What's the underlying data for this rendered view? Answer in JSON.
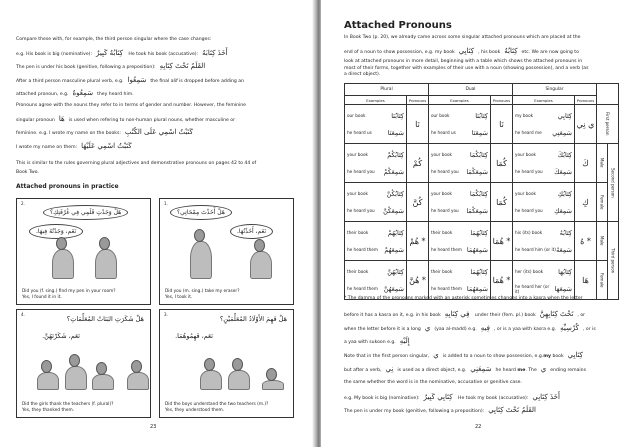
{
  "left_page": {
    "lines": [
      [
        {
          "t": "Compare these with, for example, the third person singular where the case changes:"
        }
      ],
      [
        {
          "t": "e.g. His book is big (nominative):"
        },
        {
          "t": "كِتَابُهُ كَبِيرٌ",
          "ar": 1
        },
        {
          "t": "           He took his book (accusative):"
        },
        {
          "t": "أَخَذَ كِتَابَهُ",
          "ar": 1
        }
      ],
      [
        {
          "t": "The pen is under his book (genitive, following a preposition):"
        },
        {
          "t": "القَلَمُ تَحْتَ كِتَابِهِ",
          "ar": 1
        }
      ],
      [
        {
          "t": "After a third person masculine plural verb, e.g."
        },
        {
          "t": "سَمِعُوا",
          "ar": 1
        },
        {
          "t": "the final alif is dropped before adding an"
        }
      ],
      [
        {
          "t": "attached pronoun, e.g."
        },
        {
          "t": "سَمِعُوهُ",
          "ar": 1
        },
        {
          "t": "they heard him."
        }
      ],
      [
        {
          "t": "Pronouns agree with the nouns they refer to in terms of gender and number.  However, the feminine"
        }
      ],
      [
        {
          "t": "singular pronoun"
        },
        {
          "t": "هَا",
          "ar": 1
        },
        {
          "t": "is used when refering to non-human plural nouns, whether masculine or"
        }
      ],
      [
        {
          "t": "feminine.    e.g. I wrote my name on the books:"
        },
        {
          "t": "كَتَبْتُ اسْمِي عَلَى الكُتُبِ",
          "ar": 1
        }
      ],
      [
        {
          "t": "                                    I wrote my name on them:"
        },
        {
          "t": "كَتَبْتُ اسْمِي عَلَيْهَا",
          "ar": 1
        }
      ],
      [
        {
          "t": "This is similar to the rules governing plural adjectives and demonstrative pronouns on pages 42 to 44 of"
        }
      ],
      [
        {
          "t": "Book Two."
        }
      ]
    ],
    "section_title": "Attached pronouns in practice",
    "panels": [
      {
        "number": "2.",
        "question": "هَلْ وَجَدْتِ قَلَمِي فِي غُرْفَتِكِ؟",
        "answer": "نَعَم، وَجَدْتُهُ فِيهَا.",
        "caption1": "Did you (f. sing.) find my pen in your room?",
        "caption2": "Yes, I found it in it."
      },
      {
        "number": "1.",
        "question": "هَلْ أَخَذْتَ مِمْحَاتِي؟",
        "answer": "نَعَم، أَخَذْتُهَا.",
        "caption1": "Did you (m. sing.) take my eraser?",
        "caption2": "Yes, I took it."
      },
      {
        "number": "4.",
        "question": "هَلْ شَكَرَتِ البَنَاتُ المُعَلِّمَاتِ؟",
        "answer": "نَعَم، شَكَرْنَهُنَّ.",
        "caption1": "Did the girls thank the teachers (f. plural)?",
        "caption2": "Yes, they thanked them."
      },
      {
        "number": "3.",
        "question": "هَلْ فَهِمَ الأَوْلَادُ المُعَلِّمَيْنِ؟",
        "answer": "نَعَم، فَهِمُوهُمَا.",
        "caption1": "Did the boys understand the two teachers (m.)?",
        "caption2": "Yes, they understood them."
      }
    ],
    "page_number": "23"
  },
  "right_page": {
    "title": "Attached Pronouns",
    "intro": [
      [
        {
          "t": "In Book Two (p. 20), we already came across some singular attached pronouns which are placed at the"
        }
      ],
      [
        {
          "t": "end of a noun to show possession, e.g. my book"
        },
        {
          "t": "كِتَابِي",
          "ar": 1
        },
        {
          "t": ", his book"
        },
        {
          "t": "كِتَابُهُ",
          "ar": 1
        },
        {
          "t": "etc. We are now going to"
        }
      ],
      [
        {
          "t": "look at attached pronouns in more detail, beginning with a table which shows the attached pronouns in"
        }
      ],
      [
        {
          "t": "most of their forms, together with examples of their use with a noun (showing possession), and a verb (as"
        }
      ],
      [
        {
          "t": "a direct object)."
        }
      ]
    ],
    "table": {
      "groups": [
        "Plural",
        "Dual",
        "Singular"
      ],
      "examples_label": "Examples",
      "pronouns_label": "Pronouns",
      "rows": [
        {
          "person": "First person",
          "gender": "",
          "plural": {
            "ex": [
              [
                "our book",
                "كِتَابُنَا"
              ],
              [
                "he heard us",
                "سَمِعَنَا"
              ]
            ],
            "pr": "نَا"
          },
          "dual": {
            "ex": [
              [
                "our book",
                "كِتَابُنَا"
              ],
              [
                "he heard us",
                "سَمِعَنَا"
              ]
            ],
            "pr": "نَا"
          },
          "singular": {
            "ex": [
              [
                "my book",
                "كِتَابِي"
              ],
              [
                "he heard me",
                "سَمِعَنِي"
              ]
            ],
            "pr": "ي نِي"
          }
        },
        {
          "person": "Second person",
          "gender": "Male",
          "plural": {
            "ex": [
              [
                "your book",
                "كِتَابُكُمْ"
              ],
              [
                "he heard you",
                "سَمِعَكُمْ"
              ]
            ],
            "pr": "كُمْ"
          },
          "dual": {
            "ex": [
              [
                "your book",
                "كِتَابُكُمَا"
              ],
              [
                "he heard you",
                "سَمِعَكُمَا"
              ]
            ],
            "pr": "كُمَا"
          },
          "singular": {
            "ex": [
              [
                "your book",
                "كِتَابُكَ"
              ],
              [
                "he heard you",
                "سَمِعَكَ"
              ]
            ],
            "pr": "كَ"
          }
        },
        {
          "person": "",
          "gender": "Female",
          "plural": {
            "ex": [
              [
                "your book",
                "كِتَابُكُنَّ"
              ],
              [
                "he heard you",
                "سَمِعَكُنَّ"
              ]
            ],
            "pr": "كُنَّ"
          },
          "dual": {
            "ex": [
              [
                "your book",
                "كِتَابُكُمَا"
              ],
              [
                "he heard you",
                "سَمِعَكُمَا"
              ]
            ],
            "pr": "كُمَا"
          },
          "singular": {
            "ex": [
              [
                "your book",
                "كِتَابُكِ"
              ],
              [
                "he heard you",
                "سَمِعَكِ"
              ]
            ],
            "pr": "كِ"
          }
        },
        {
          "person": "Third person",
          "gender": "Male",
          "plural": {
            "ex": [
              [
                "their book",
                "كِتَابُهُمْ"
              ],
              [
                "he heard them",
                "سَمِعَهُمْ"
              ]
            ],
            "pr": "هُمْ *"
          },
          "dual": {
            "ex": [
              [
                "their book",
                "كِتَابُهُمَا"
              ],
              [
                "he heard them",
                "سَمِعَهُمَا"
              ]
            ],
            "pr": "هُمَا *"
          },
          "singular": {
            "ex": [
              [
                "his (its) book",
                "كِتَابُهُ"
              ],
              [
                "he heard him (or it)",
                "سَمِعَهُ"
              ]
            ],
            "pr": "هُ *"
          }
        },
        {
          "person": "",
          "gender": "Female",
          "plural": {
            "ex": [
              [
                "their book",
                "كِتَابُهُنَّ"
              ],
              [
                "he heard them",
                "سَمِعَهُنَّ"
              ]
            ],
            "pr": "هُنَّ *"
          },
          "dual": {
            "ex": [
              [
                "their book",
                "كِتَابُهُمَا"
              ],
              [
                "he heard them",
                "سَمِعَهُمَا"
              ]
            ],
            "pr": "هُمَا *"
          },
          "singular": {
            "ex": [
              [
                "her (its) book",
                "كِتَابُهَا"
              ],
              [
                "he heard her (or it)",
                "سَمِعَهَا"
              ]
            ],
            "pr": "هَا"
          }
        }
      ]
    },
    "notes": [
      [
        {
          "t": "* The damma of the pronouns marked with an asterisk sometimes changes into a kasra when the letter"
        }
      ],
      [
        {
          "t": "before it has a kasra on it, e.g. in his book"
        },
        {
          "t": "فِي كِتَابِهِ",
          "ar": 1
        },
        {
          "t": "  under their (fem. pl.) book"
        },
        {
          "t": "تَحْتَ كِتَابِهِنَّ",
          "ar": 1
        },
        {
          "t": ", or"
        }
      ],
      [
        {
          "t": "when the letter before it is a long"
        },
        {
          "t": "ي",
          "ar": 1
        },
        {
          "t": "(yaa al-madd) e.g."
        },
        {
          "t": "فِيهِ",
          "ar": 1
        },
        {
          "t": ", or is a yaa with kasra e.g."
        },
        {
          "t": "كُرْسِيِّهِ",
          "ar": 1
        },
        {
          "t": ", or is"
        }
      ],
      [
        {
          "t": "a yaa with sukoon e.g."
        },
        {
          "t": "إِلَيْهِ",
          "ar": 1
        }
      ],
      [
        {
          "t": "Note that in the first person singular,"
        },
        {
          "t": "ي",
          "ar": 1
        },
        {
          "t": "is added to a noun to show possession, e.g."
        },
        {
          "t": "my",
          "b": 1
        },
        {
          "t": " book"
        },
        {
          "t": "كِتَابِي",
          "ar": 1
        }
      ],
      [
        {
          "t": "but after a verb,"
        },
        {
          "t": "نِي",
          "ar": 1
        },
        {
          "t": "is used as a direct object, e.g."
        },
        {
          "t": "سَمِعَنِي",
          "ar": 1
        },
        {
          "t": "he heard "
        },
        {
          "t": "me",
          "b": 1
        },
        {
          "t": ". The"
        },
        {
          "t": "ي",
          "ar": 1
        },
        {
          "t": "ending remains"
        }
      ],
      [
        {
          "t": "the same whether the word is in the nominative, accusative or genitive case."
        }
      ],
      [
        {
          "t": "e.g. My book is big (nominative):"
        },
        {
          "t": "كِتَابِي كَبِيرٌ",
          "ar": 1
        },
        {
          "t": "           He took my book (accusative):"
        },
        {
          "t": "أَخَذَ كِتَابِي",
          "ar": 1
        }
      ],
      [
        {
          "t": "The pen is under my book (genitive, following a preposition):"
        },
        {
          "t": "القَلَمُ تَحْتَ كِتَابِي",
          "ar": 1
        }
      ]
    ],
    "page_number": "22"
  }
}
